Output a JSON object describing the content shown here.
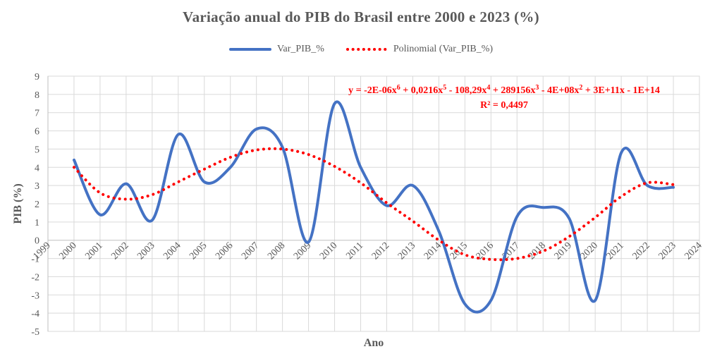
{
  "chart_data": {
    "type": "line",
    "title": "Variação  anual do PIB do Brasil entre 2000 e 2023 (%)",
    "xlabel": "Ano",
    "ylabel": "PIB (%)",
    "xlim": [
      1999,
      2024
    ],
    "ylim": [
      -5,
      9
    ],
    "x_ticks": [
      "1999",
      "2000",
      "2001",
      "2002",
      "2003",
      "2004",
      "2005",
      "2006",
      "2007",
      "2008",
      "2009",
      "2010",
      "2011",
      "2012",
      "2013",
      "2014",
      "2015",
      "2016",
      "2017",
      "2018",
      "2019",
      "2020",
      "2021",
      "2022",
      "2023",
      "2024"
    ],
    "y_ticks": [
      9,
      8,
      7,
      6,
      5,
      4,
      3,
      2,
      1,
      0,
      -1,
      -2,
      -3,
      -4,
      -5
    ],
    "grid": true,
    "legend_position": "top",
    "series": [
      {
        "name": "Var_PIB_%",
        "color": "#4472c4",
        "style": "solid-smooth",
        "x": [
          2000,
          2001,
          2002,
          2003,
          2004,
          2005,
          2006,
          2007,
          2008,
          2009,
          2010,
          2011,
          2012,
          2013,
          2014,
          2015,
          2016,
          2017,
          2018,
          2019,
          2020,
          2021,
          2022,
          2023
        ],
        "values": [
          4.4,
          1.4,
          3.1,
          1.1,
          5.8,
          3.2,
          4.0,
          6.1,
          5.1,
          -0.1,
          7.5,
          4.0,
          1.9,
          3.0,
          0.5,
          -3.5,
          -3.3,
          1.3,
          1.8,
          1.2,
          -3.3,
          4.8,
          3.0,
          2.9
        ]
      },
      {
        "name": "Polinomial (Var_PIB_%)",
        "color": "#ff0000",
        "style": "dotted",
        "x": [
          2000,
          2001,
          2002,
          2003,
          2004,
          2005,
          2006,
          2007,
          2008,
          2009,
          2010,
          2011,
          2012,
          2013,
          2014,
          2015,
          2016,
          2017,
          2018,
          2019,
          2020,
          2021,
          2022,
          2023
        ],
        "values": [
          4.0,
          2.6,
          2.25,
          2.5,
          3.2,
          3.9,
          4.55,
          4.95,
          5.0,
          4.7,
          4.05,
          3.15,
          2.05,
          1.05,
          0.0,
          -0.8,
          -1.05,
          -1.0,
          -0.6,
          0.2,
          1.25,
          2.4,
          3.15,
          3.05
        ]
      }
    ],
    "annotations": [
      "y = -2E-06x6 + 0,0216x5 - 108,29x4 + 289156x3 - 4E+08x2 + 3E+11x - 1E+14",
      "R² = 0,4497"
    ]
  }
}
